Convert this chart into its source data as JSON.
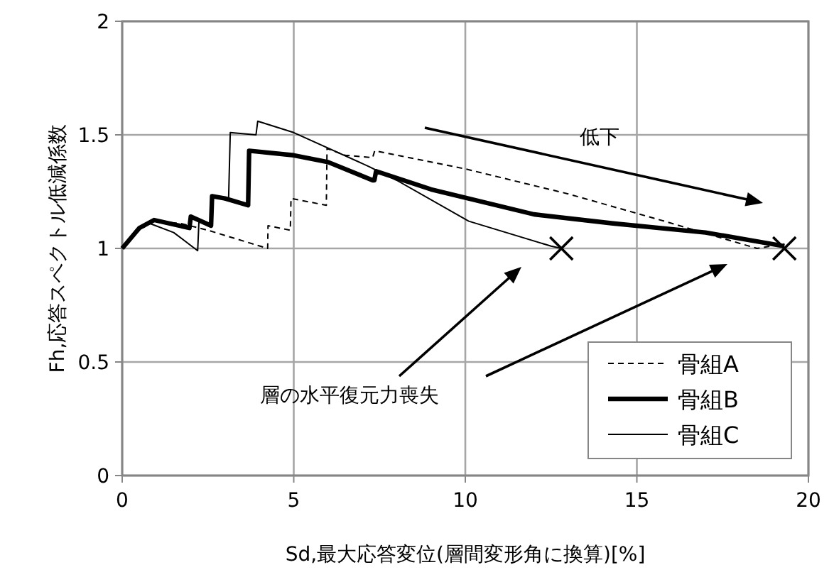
{
  "chart_data": {
    "type": "line",
    "xlabel": "Sd,最大応答変位(層間変形角に換算)[%]",
    "ylabel": "Fh,応答スペクトル低減係数",
    "xlim": [
      0,
      20
    ],
    "xticks": [
      0,
      5,
      10,
      15,
      20
    ],
    "ylim": [
      0,
      2
    ],
    "yticks": [
      0,
      0.5,
      1,
      1.5,
      2
    ],
    "grid": true,
    "legend": "bottom right",
    "series": [
      {
        "name": "骨組A",
        "color": "#000000",
        "line_style": "dashed",
        "x": [
          0,
          0.5,
          0.9,
          1.7,
          2.5,
          4.24,
          4.25,
          4.9,
          4.92,
          5.95,
          5.97,
          6.5,
          7.3,
          7.36,
          10.0,
          13.0,
          15.8,
          18.5,
          19.3
        ],
        "values": [
          1.0,
          1.08,
          1.12,
          1.11,
          1.08,
          1.0,
          1.1,
          1.08,
          1.22,
          1.19,
          1.44,
          1.41,
          1.4,
          1.43,
          1.35,
          1.24,
          1.12,
          1.0,
          1.02
        ]
      },
      {
        "name": "骨組B",
        "color": "#000000",
        "line_style": "solid",
        "x": [
          0,
          0.5,
          0.93,
          1.96,
          2.0,
          2.59,
          2.62,
          3.0,
          3.67,
          3.7,
          5.0,
          6.0,
          7.3,
          7.35,
          7.4,
          9.0,
          12.0,
          14.3,
          17.0,
          19.3
        ],
        "values": [
          1.0,
          1.09,
          1.125,
          1.09,
          1.14,
          1.1,
          1.23,
          1.22,
          1.19,
          1.43,
          1.41,
          1.38,
          1.3,
          1.3,
          1.34,
          1.26,
          1.15,
          1.11,
          1.07,
          1.01
        ]
      },
      {
        "name": "骨組C",
        "color": "#000000",
        "line_style": "solid",
        "x": [
          0,
          0.4,
          0.8,
          1.5,
          2.2,
          2.24,
          2.6,
          2.65,
          3.1,
          3.15,
          3.9,
          3.95,
          5.0,
          7.2,
          8.0,
          10.1,
          12.5,
          12.8
        ],
        "values": [
          1.0,
          1.08,
          1.11,
          1.07,
          0.99,
          1.13,
          1.1,
          1.23,
          1.21,
          1.51,
          1.5,
          1.56,
          1.51,
          1.36,
          1.3,
          1.12,
          1.01,
          1.0
        ]
      },
      {
        "type": "scatter",
        "marker": "cross",
        "color": "#000000",
        "x": [
          12.8,
          19.3
        ],
        "values": [
          1.0,
          1.0
        ]
      }
    ],
    "annotations": [
      "低下",
      "層の水平復元力喪失"
    ]
  }
}
